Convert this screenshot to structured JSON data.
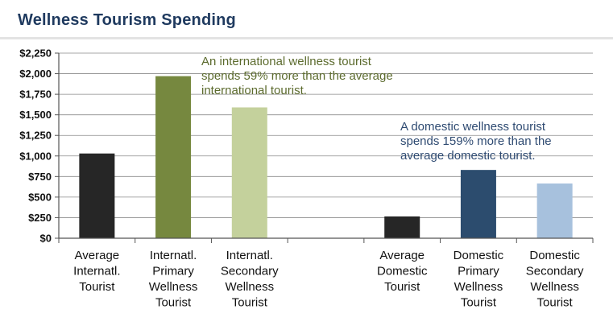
{
  "chart_data": {
    "type": "bar",
    "title": "Wellness Tourism Spending",
    "ylim": [
      0,
      2250
    ],
    "yticks": [
      "$0",
      "$250",
      "$500",
      "$750",
      "$1,000",
      "$1,250",
      "$1,500",
      "$1,750",
      "$2,000",
      "$2,250"
    ],
    "grid": true,
    "categories": [
      "Average Internatl. Tourist",
      "Internatl. Primary Wellness Tourist",
      "Internatl. Secondary Wellness Tourist",
      "",
      "Average Domestic Tourist",
      "Domestic Primary Wellness Tourist",
      "Domestic Secondary Wellness Tourist"
    ],
    "category_lines": [
      [
        "Average",
        "Internatl.",
        "Tourist"
      ],
      [
        "Internatl.",
        "Primary",
        "Wellness",
        "Tourist"
      ],
      [
        "Internatl.",
        "Secondary",
        "Wellness",
        "Tourist"
      ],
      [],
      [
        "Average",
        "Domestic",
        "Tourist"
      ],
      [
        "Domestic",
        "Primary",
        "Wellness",
        "Tourist"
      ],
      [
        "Domestic",
        "Secondary",
        "Wellness",
        "Tourist"
      ]
    ],
    "values": [
      1030,
      1970,
      1590,
      null,
      265,
      830,
      665
    ],
    "colors": [
      "#262626",
      "#76883f",
      "#c4d19c",
      null,
      "#262626",
      "#2c4c6e",
      "#a7c1dd"
    ],
    "annotations": [
      {
        "lines": [
          "An international wellness tourist",
          "spends 59% more than the average",
          "international tourist."
        ],
        "color": "#5c6b2e"
      },
      {
        "lines": [
          "A domestic wellness tourist",
          "spends 159% more than the",
          "average domestic tourist."
        ],
        "color": "#2f4b72"
      }
    ]
  }
}
